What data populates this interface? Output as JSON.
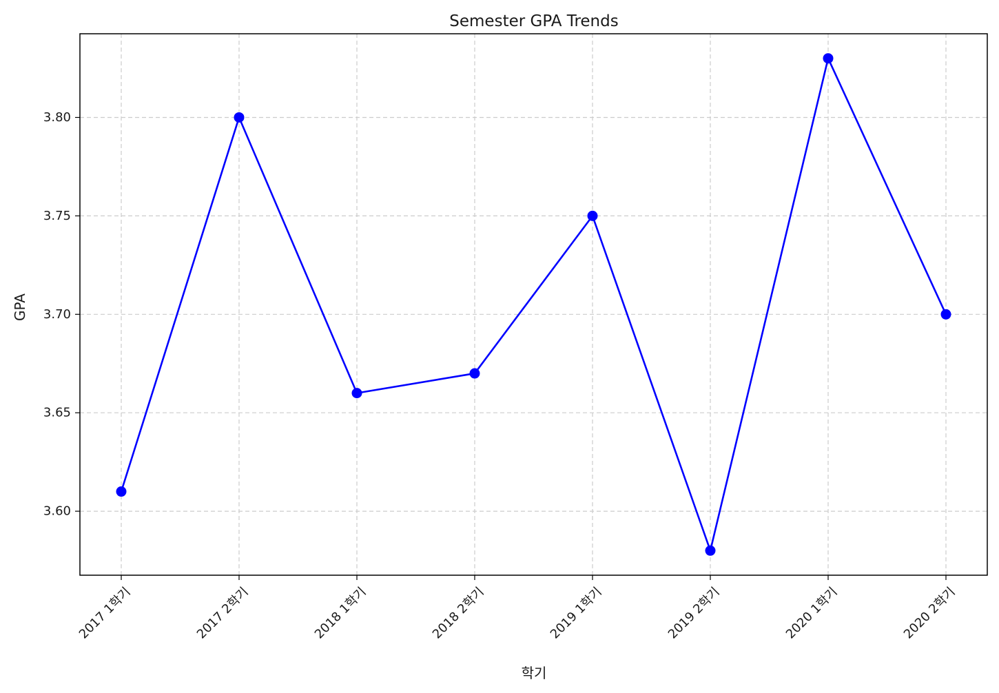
{
  "chart_data": {
    "type": "line",
    "title": "Semester GPA Trends",
    "xlabel": "학기",
    "ylabel": "GPA",
    "categories": [
      "2017 1학기",
      "2017 2학기",
      "2018 1학기",
      "2018 2학기",
      "2019 1학기",
      "2019 2학기",
      "2020 1학기",
      "2020 2학기"
    ],
    "series": [
      {
        "values": [
          3.61,
          3.8,
          3.66,
          3.67,
          3.75,
          3.58,
          3.83,
          3.7
        ],
        "color": "#0000ff",
        "marker": "circle"
      }
    ],
    "yticks": [
      "3.60",
      "3.65",
      "3.70",
      "3.75",
      "3.80"
    ],
    "ylim": [
      3.5675,
      3.8425
    ],
    "grid": true,
    "legend": "none"
  }
}
